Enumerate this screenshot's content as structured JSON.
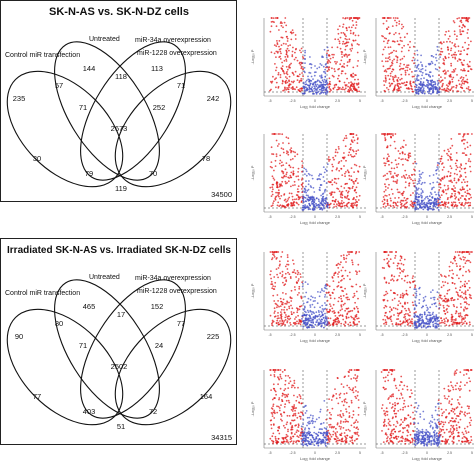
{
  "venn_panels": [
    {
      "title": "SK-N-AS vs. SK-N-DZ cells",
      "sets": [
        "Control miR transfection",
        "Untreated",
        "miR-34a overexpression",
        "miR-1228 overexpression"
      ],
      "counts": {
        "c_only": "235",
        "u_only": "144",
        "m34_only": "113",
        "m1228_only": "242",
        "cu": "57",
        "um34": "118",
        "m34m1228": "71",
        "cm1228": "30",
        "um1228": "71",
        "cm34": "78",
        "cum34": "252",
        "center": "2673",
        "cm34m1228": "79",
        "um34m1228": "70",
        "cum1228": "119"
      },
      "total": "34500"
    },
    {
      "title": "Irradiated SK-N-AS vs. Irradiated SK-N-DZ cells",
      "sets": [
        "Control miR transfection",
        "Untreated",
        "miR-34a overexpression",
        "miR-1228 overexpression"
      ],
      "counts": {
        "c_only": "90",
        "u_only": "465",
        "m34_only": "152",
        "m1228_only": "225",
        "cu": "80",
        "um34": "17",
        "m34m1228": "77",
        "cm1228": "77",
        "um1228": "71",
        "cm34": "164",
        "cum34": "24",
        "center": "2502",
        "cm34m1228": "403",
        "um34m1228": "72",
        "cum1228": "51"
      },
      "total": "34315"
    }
  ],
  "volcano": {
    "ylabel": "-Log₁₀ P",
    "xlabel": "Log₂ fold change",
    "x_ticks": [
      "-5",
      "-2.5",
      "0",
      "2.5",
      "5"
    ],
    "colors": {
      "ns": "#888888",
      "log2fc": "#3a8a3a",
      "p": "#4a55c8",
      "both": "#e0191b"
    }
  }
}
